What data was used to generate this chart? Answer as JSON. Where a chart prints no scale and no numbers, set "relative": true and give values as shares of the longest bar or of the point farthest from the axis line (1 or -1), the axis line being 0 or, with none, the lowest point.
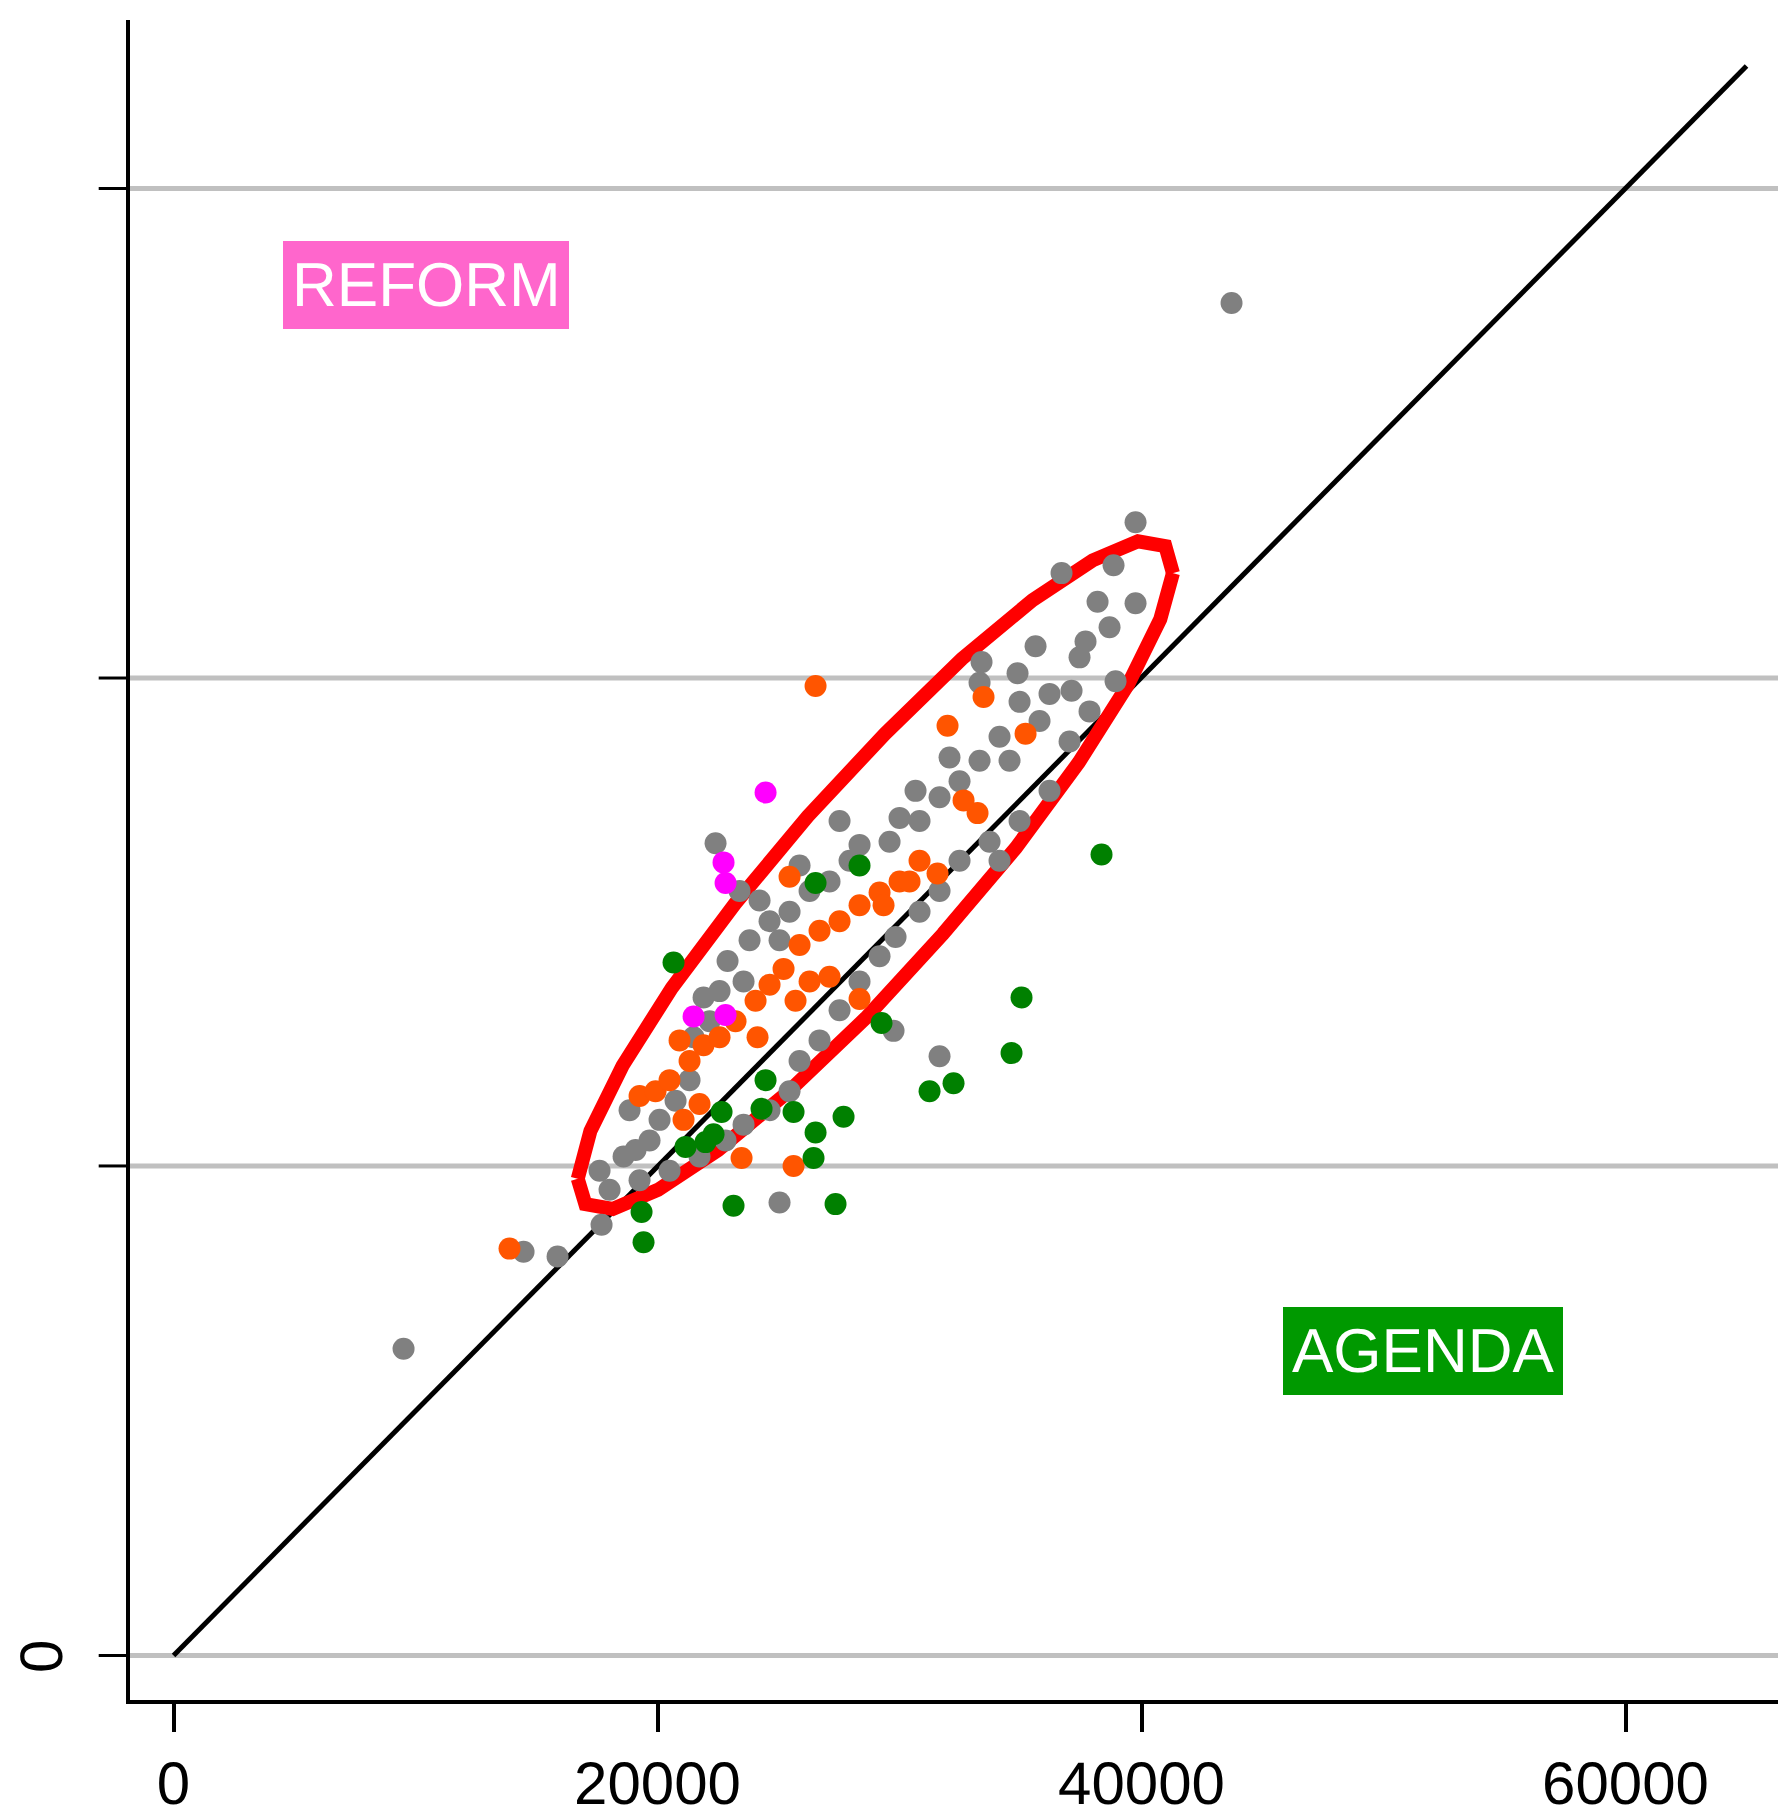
{
  "chart_data": {
    "type": "scatter",
    "relative": true,
    "annotations": [
      "REFORM",
      "AGENDA"
    ],
    "xlim": [
      -1800,
      66300
    ],
    "xticks": [
      0,
      20000,
      40000,
      60000
    ],
    "marker": "circle",
    "ref_lines": [
      {
        "axis": "y",
        "value": 0,
        "label": "0",
        "color": "#c0c0c0"
      },
      {
        "axis": "y",
        "value": 0.308,
        "color": "#c0c0c0"
      },
      {
        "axis": "y",
        "value": 0.615,
        "color": "#c0c0c0"
      },
      {
        "axis": "y",
        "value": 0.923,
        "color": "#c0c0c0"
      }
    ],
    "series": [
      {
        "color": "#808080",
        "x": [
          43719,
          9504,
          14463,
          15868,
          17686,
          25041,
          31653,
          29752,
          39752,
          38843,
          36694,
          39752,
          37686,
          38678,
          37438,
          35620,
          34876,
          33388,
          33306,
          34959,
          36198,
          37107,
          35785,
          34132,
          34545,
          33306,
          32479,
          31653,
          32066,
          30661,
          30826,
          30000,
          29587,
          28347,
          27521,
          27934,
          27107,
          26281,
          25455,
          24628,
          23802,
          24215,
          25041,
          25868,
          22397,
          23388,
          21901,
          22893,
          23554,
          22562,
          21488,
          22149,
          21322,
          20744,
          20083,
          19669,
          19091,
          18595,
          19256,
          20496,
          21735,
          22810,
          23554,
          24628,
          25455,
          25868,
          26694,
          27521,
          28347,
          29174,
          29835,
          30826,
          31653,
          32479,
          33719,
          34132,
          34959,
          36198,
          37025,
          37851,
          38182,
          38926,
          18017,
          17603,
          18843
        ],
        "values": [
          0.851,
          0.193,
          0.254,
          0.251,
          0.271,
          0.285,
          0.377,
          0.393,
          0.713,
          0.686,
          0.681,
          0.662,
          0.638,
          0.647,
          0.628,
          0.635,
          0.618,
          0.625,
          0.612,
          0.6,
          0.605,
          0.607,
          0.588,
          0.578,
          0.563,
          0.563,
          0.55,
          0.54,
          0.565,
          0.544,
          0.525,
          0.527,
          0.512,
          0.51,
          0.525,
          0.5,
          0.487,
          0.481,
          0.468,
          0.462,
          0.45,
          0.475,
          0.45,
          0.497,
          0.511,
          0.481,
          0.414,
          0.437,
          0.424,
          0.418,
          0.389,
          0.399,
          0.362,
          0.349,
          0.337,
          0.324,
          0.318,
          0.314,
          0.299,
          0.305,
          0.314,
          0.324,
          0.334,
          0.343,
          0.355,
          0.374,
          0.387,
          0.406,
          0.424,
          0.44,
          0.452,
          0.468,
          0.481,
          0.5,
          0.512,
          0.5,
          0.525,
          0.544,
          0.575,
          0.594,
          0.663,
          0.613,
          0.293,
          0.305,
          0.343
        ]
      },
      {
        "color": "#ff5500",
        "x": [
          26529,
          13884,
          31983,
          33471,
          35207,
          25455,
          28347,
          23471,
          25620,
          33223,
          31570,
          32645,
          19256,
          19917,
          20496,
          21322,
          21901,
          22562,
          23223,
          24050,
          24628,
          25207,
          25868,
          26694,
          27521,
          28347,
          29174,
          30000,
          30826,
          21074,
          21735,
          20909,
          24132,
          25702,
          26281,
          27107,
          29339,
          30413
        ],
        "values": [
          0.61,
          0.256,
          0.585,
          0.603,
          0.58,
          0.49,
          0.413,
          0.313,
          0.308,
          0.53,
          0.492,
          0.538,
          0.352,
          0.355,
          0.362,
          0.374,
          0.384,
          0.389,
          0.399,
          0.412,
          0.422,
          0.432,
          0.447,
          0.456,
          0.462,
          0.472,
          0.48,
          0.487,
          0.5,
          0.337,
          0.347,
          0.387,
          0.389,
          0.412,
          0.424,
          0.427,
          0.472,
          0.487
        ]
      },
      {
        "color": "#ff00ff",
        "x": [
          24463,
          22727,
          22810,
          21488,
          22810
        ],
        "values": [
          0.543,
          0.499,
          0.486,
          0.402,
          0.403
        ]
      },
      {
        "color": "#008000",
        "x": [
          20661,
          28347,
          26529,
          38347,
          35041,
          34628,
          31240,
          32231,
          29256,
          27686,
          26446,
          27355,
          23140,
          19339,
          19421,
          21157,
          22314,
          21983,
          24298,
          25620,
          26529,
          24463,
          22645
        ],
        "values": [
          0.436,
          0.497,
          0.486,
          0.504,
          0.414,
          0.379,
          0.355,
          0.36,
          0.398,
          0.339,
          0.313,
          0.284,
          0.283,
          0.279,
          0.26,
          0.32,
          0.328,
          0.323,
          0.344,
          0.342,
          0.329,
          0.362,
          0.342
        ]
      },
      {
        "type": "line",
        "marker": "none",
        "color": "#000000",
        "x": [
          0,
          65000
        ],
        "values": [
          0,
          1
        ]
      },
      {
        "type": "line",
        "marker": "none",
        "color": "#ff0000",
        "x": [
          16702,
          17226,
          18552,
          20589,
          23201,
          26207,
          29403,
          32573,
          35498,
          37980,
          39852,
          40983,
          41298
        ],
        "values": [
          0.3,
          0.33,
          0.371,
          0.42,
          0.473,
          0.528,
          0.58,
          0.627,
          0.664,
          0.689,
          0.701,
          0.698,
          0.681
        ]
      },
      {
        "type": "line",
        "marker": "none",
        "color": "#ff0000",
        "x": [
          16702,
          17017,
          18148,
          20020,
          22502,
          25427,
          28597,
          31793,
          34799,
          37411,
          39448,
          40774,
          41298
        ],
        "values": [
          0.3,
          0.284,
          0.281,
          0.293,
          0.318,
          0.355,
          0.401,
          0.454,
          0.508,
          0.562,
          0.611,
          0.652,
          0.681
        ]
      }
    ]
  }
}
